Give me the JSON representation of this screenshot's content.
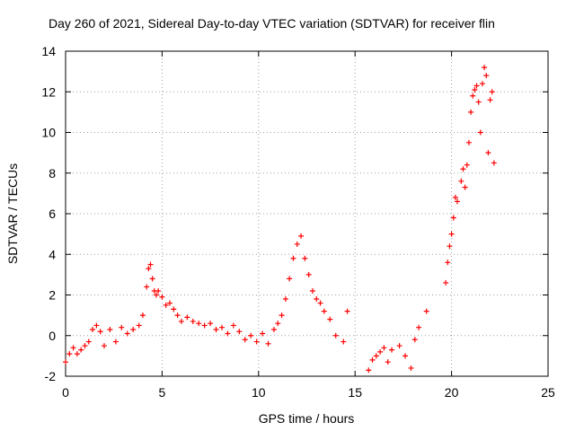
{
  "chart_data": {
    "type": "scatter",
    "title": "Day 260 of 2021, Sidereal Day-to-day VTEC variation (SDTVAR) for receiver flin",
    "xlabel": "GPS time / hours",
    "ylabel": "SDTVAR / TECUs",
    "xlim": [
      0,
      25
    ],
    "ylim": [
      -2,
      14
    ],
    "xticks": [
      "0",
      "5",
      "10",
      "15",
      "20",
      "25"
    ],
    "yticks": [
      "-2",
      "0",
      "2",
      "4",
      "6",
      "8",
      "10",
      "12",
      "14"
    ],
    "grid": true,
    "marker": "plus",
    "color": "#ff0000",
    "series": [
      {
        "name": "SDTVAR",
        "x": [
          0.0,
          0.2,
          0.4,
          0.6,
          0.8,
          1.0,
          1.2,
          1.4,
          1.6,
          1.8,
          2.0,
          2.3,
          2.6,
          2.9,
          3.2,
          3.5,
          3.8,
          4.0,
          4.2,
          4.3,
          4.4,
          4.5,
          4.6,
          4.7,
          4.8,
          5.0,
          5.2,
          5.4,
          5.6,
          5.8,
          6.0,
          6.3,
          6.6,
          6.9,
          7.2,
          7.5,
          7.8,
          8.1,
          8.4,
          8.7,
          9.0,
          9.3,
          9.6,
          9.9,
          10.2,
          10.5,
          10.8,
          11.0,
          11.2,
          11.4,
          11.6,
          11.8,
          12.0,
          12.2,
          12.4,
          12.6,
          12.8,
          13.0,
          13.2,
          13.4,
          13.7,
          14.0,
          14.4,
          14.6,
          15.7,
          15.9,
          16.1,
          16.3,
          16.5,
          16.7,
          16.9,
          17.3,
          17.6,
          17.9,
          18.1,
          18.3,
          18.7,
          19.7,
          19.8,
          19.9,
          20.0,
          20.1,
          20.2,
          20.3,
          20.5,
          20.6,
          20.7,
          20.8,
          20.9,
          21.0,
          21.1,
          21.2,
          21.3,
          21.4,
          21.5,
          21.6,
          21.7,
          21.8,
          21.9,
          22.0,
          22.1,
          22.2
        ],
        "y": [
          -1.3,
          -0.9,
          -0.6,
          -0.9,
          -0.7,
          -0.5,
          -0.3,
          0.3,
          0.5,
          0.2,
          -0.5,
          0.3,
          -0.3,
          0.4,
          0.1,
          0.3,
          0.5,
          1.0,
          2.4,
          3.3,
          3.5,
          2.8,
          2.2,
          2.0,
          2.2,
          1.9,
          1.5,
          1.6,
          1.3,
          1.0,
          0.7,
          0.9,
          0.7,
          0.6,
          0.5,
          0.6,
          0.3,
          0.4,
          0.1,
          0.5,
          0.2,
          -0.2,
          0.0,
          -0.3,
          0.1,
          -0.4,
          0.3,
          0.6,
          1.0,
          1.8,
          2.8,
          3.8,
          4.5,
          4.9,
          3.8,
          3.0,
          2.2,
          1.8,
          1.6,
          1.2,
          0.8,
          0.0,
          -0.3,
          1.2,
          -1.7,
          -1.2,
          -1.0,
          -0.8,
          -0.6,
          -1.3,
          -0.7,
          -0.5,
          -1.0,
          -1.6,
          -0.2,
          0.4,
          1.2,
          2.6,
          3.6,
          4.4,
          5.0,
          5.8,
          6.8,
          6.6,
          7.6,
          8.2,
          7.3,
          8.4,
          9.5,
          11.0,
          11.8,
          12.1,
          12.3,
          11.5,
          10.0,
          12.4,
          13.2,
          12.8,
          9.0,
          11.6,
          12.0,
          8.5
        ]
      }
    ]
  }
}
